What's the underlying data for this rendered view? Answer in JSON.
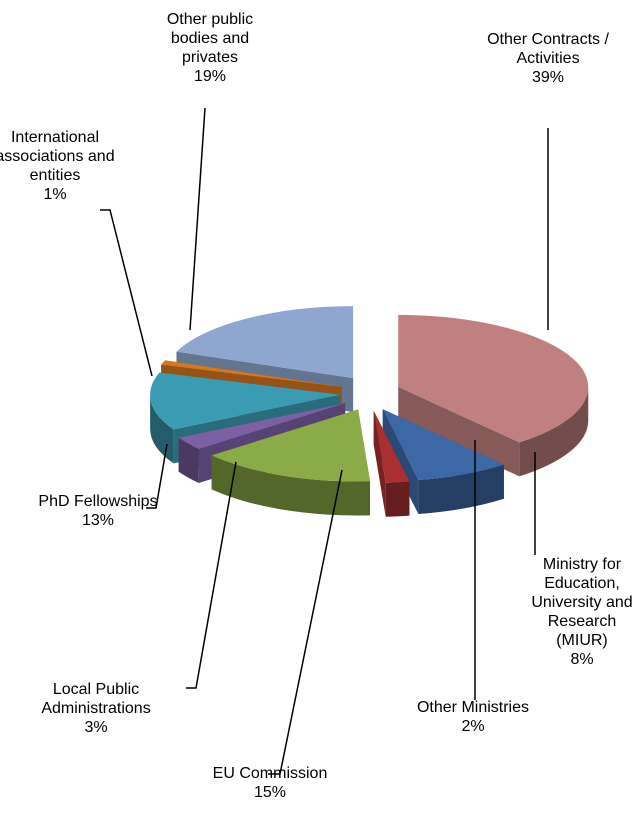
{
  "chart_data": {
    "type": "pie3d",
    "categories": [
      "Other Contracts / Activities",
      "Ministry for Education, University and Research (MIUR)",
      "Other Ministries",
      "EU Commission",
      "Local Public Administrations",
      "PhD Fellowships",
      "International associations and entities",
      "Other public bodies and privates"
    ],
    "values": [
      39,
      8,
      2,
      15,
      3,
      13,
      1,
      19
    ],
    "value_labels": [
      "39%",
      "8%",
      "2%",
      "15%",
      "3%",
      "13%",
      "1%",
      "19%"
    ],
    "colors": [
      "#c0807f",
      "#3d68a6",
      "#a83030",
      "#8aab48",
      "#7c60a4",
      "#3b9bb3",
      "#d6761e",
      "#8fa7cf"
    ]
  }
}
